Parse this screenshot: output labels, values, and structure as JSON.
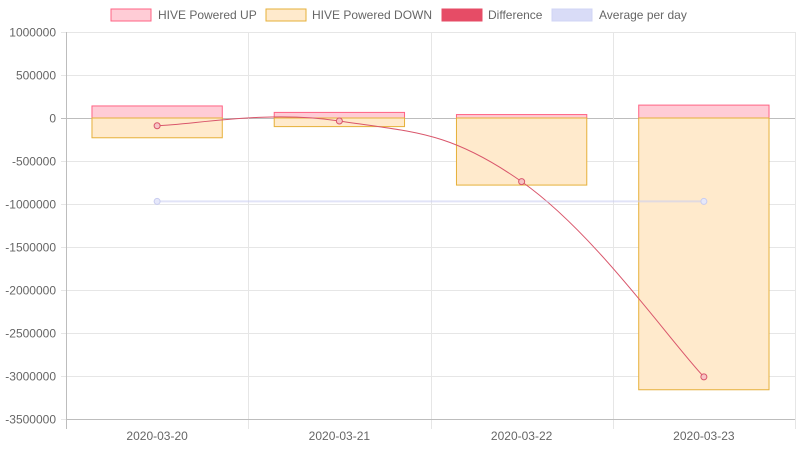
{
  "chart_data": {
    "type": "bar",
    "categories": [
      "2020-03-20",
      "2020-03-21",
      "2020-03-22",
      "2020-03-23"
    ],
    "series": [
      {
        "name": "HIVE Powered UP",
        "type": "bar",
        "values": [
          140000,
          65000,
          40000,
          150000
        ],
        "color": "#ff6384",
        "fill": "#ffccd6"
      },
      {
        "name": "HIVE Powered DOWN",
        "type": "bar",
        "values": [
          -230000,
          -100000,
          -780000,
          -3160000
        ],
        "color": "#e6b03a",
        "fill": "#ffeacc"
      },
      {
        "name": "Difference",
        "type": "line",
        "values": [
          -90000,
          -35000,
          -740000,
          -3010000
        ],
        "color": "#d9566b"
      },
      {
        "name": "Average per day",
        "type": "line",
        "values": [
          -970000,
          -970000,
          -970000,
          -970000
        ],
        "color": "#c8ccf0"
      }
    ],
    "y_ticks": [
      "1000000",
      "500000",
      "0",
      "-500000",
      "-1000000",
      "-1500000",
      "-2000000",
      "-2500000",
      "-3000000",
      "-3500000"
    ],
    "ylim": [
      -3500000,
      1000000
    ],
    "grid": true,
    "legend": "top"
  }
}
